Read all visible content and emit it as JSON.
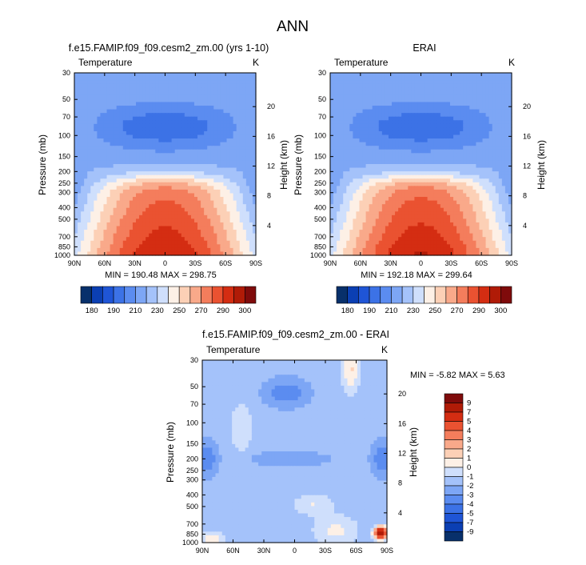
{
  "figure": {
    "title": "ANN"
  },
  "colors": {
    "abs_palette": [
      "#08306b",
      "#0b3fb3",
      "#1f55d6",
      "#3c72e6",
      "#5b8cf0",
      "#7da6f5",
      "#a4c2fa",
      "#cfdffc",
      "#fdf0e6",
      "#fcd0b6",
      "#f9a98a",
      "#f47d5c",
      "#ea5231",
      "#d42d12",
      "#b01b07",
      "#7f0b0b"
    ],
    "diff_palette": [
      "#08306b",
      "#0b3fb3",
      "#1f55d6",
      "#3c72e6",
      "#5b8cf0",
      "#7da6f5",
      "#a4c2fa",
      "#cfdffc",
      "#fdf0e6",
      "#fcd0b6",
      "#f9a98a",
      "#f47d5c",
      "#ea5231",
      "#d42d12",
      "#b01b07",
      "#7f0b0b"
    ]
  },
  "chart_data": [
    {
      "id": "model",
      "type": "contour",
      "title": "f.e15.FAMIP.f09_f09.cesm2_zm.00 (yrs 1-10)",
      "left_label": "Temperature",
      "right_label": "K",
      "ylabel": "Pressure (mb)",
      "ylabel_right": "Height (km)",
      "x_ticks": [
        "90N",
        "60N",
        "30N",
        "0",
        "30S",
        "60S",
        "90S"
      ],
      "x_values": [
        90,
        60,
        30,
        0,
        -30,
        -60,
        -90
      ],
      "y_ticks": [
        "30",
        "50",
        "70",
        "100",
        "150",
        "200",
        "250",
        "300",
        "400",
        "500",
        "700",
        "850",
        "1000"
      ],
      "y_values": [
        30,
        50,
        70,
        100,
        150,
        200,
        250,
        300,
        400,
        500,
        700,
        850,
        1000
      ],
      "height_ticks": [
        "20",
        "16",
        "12",
        "8",
        "4"
      ],
      "height_values": [
        20,
        16,
        12,
        8,
        4
      ],
      "ylim": [
        30,
        1000
      ],
      "yscale": "log",
      "stats_text": "MIN = 190.48  MAX = 298.75",
      "min": 190.48,
      "max": 298.75,
      "levels": [
        180,
        190,
        200,
        210,
        220,
        230,
        240,
        250,
        260,
        270,
        280,
        290,
        300
      ],
      "colorbar_labels": [
        "180",
        "190",
        "210",
        "230",
        "250",
        "270",
        "290",
        "300"
      ]
    },
    {
      "id": "obs",
      "type": "contour",
      "title": "ERAI",
      "left_label": "Temperature",
      "right_label": "K",
      "ylabel": "Pressure (mb)",
      "ylabel_right": "Height (km)",
      "x_ticks": [
        "90N",
        "60N",
        "30N",
        "0",
        "30S",
        "60S",
        "90S"
      ],
      "x_values": [
        90,
        60,
        30,
        0,
        -30,
        -60,
        -90
      ],
      "y_ticks": [
        "30",
        "50",
        "70",
        "100",
        "150",
        "200",
        "250",
        "300",
        "400",
        "500",
        "700",
        "850",
        "1000"
      ],
      "y_values": [
        30,
        50,
        70,
        100,
        150,
        200,
        250,
        300,
        400,
        500,
        700,
        850,
        1000
      ],
      "height_ticks": [
        "20",
        "16",
        "12",
        "8",
        "4"
      ],
      "height_values": [
        20,
        16,
        12,
        8,
        4
      ],
      "ylim": [
        30,
        1000
      ],
      "yscale": "log",
      "stats_text": "MIN = 192.18  MAX = 299.64",
      "min": 192.18,
      "max": 299.64,
      "levels": [
        180,
        190,
        200,
        210,
        220,
        230,
        240,
        250,
        260,
        270,
        280,
        290,
        300
      ],
      "colorbar_labels": [
        "180",
        "190",
        "210",
        "230",
        "250",
        "270",
        "290",
        "300"
      ]
    },
    {
      "id": "diff",
      "type": "contour",
      "title": "f.e15.FAMIP.f09_f09.cesm2_zm.00 - ERAI",
      "left_label": "Temperature",
      "right_label": "K",
      "ylabel": "Pressure (mb)",
      "ylabel_right": "Height (km)",
      "x_ticks": [
        "90N",
        "60N",
        "30N",
        "0",
        "30S",
        "60S",
        "90S"
      ],
      "x_values": [
        90,
        60,
        30,
        0,
        -30,
        -60,
        -90
      ],
      "y_ticks": [
        "30",
        "50",
        "70",
        "100",
        "150",
        "200",
        "250",
        "300",
        "400",
        "500",
        "700",
        "850",
        "1000"
      ],
      "y_values": [
        30,
        50,
        70,
        100,
        150,
        200,
        250,
        300,
        400,
        500,
        700,
        850,
        1000
      ],
      "height_ticks": [
        "20",
        "16",
        "12",
        "8",
        "4"
      ],
      "height_values": [
        20,
        16,
        12,
        8,
        4
      ],
      "ylim": [
        30,
        1000
      ],
      "yscale": "log",
      "stats_text": "MIN = -5.82  MAX =  5.63",
      "min": -5.82,
      "max": 5.63,
      "levels": [
        -9,
        -7,
        -5,
        -4,
        -3,
        -2,
        -1,
        0,
        1,
        2,
        3,
        4,
        5,
        7,
        9
      ],
      "colorbar_labels": [
        "9",
        "7",
        "5",
        "4",
        "3",
        "2",
        "1",
        "0",
        "-1",
        "-2",
        "-3",
        "-4",
        "-5",
        "-7",
        "-9"
      ]
    }
  ]
}
